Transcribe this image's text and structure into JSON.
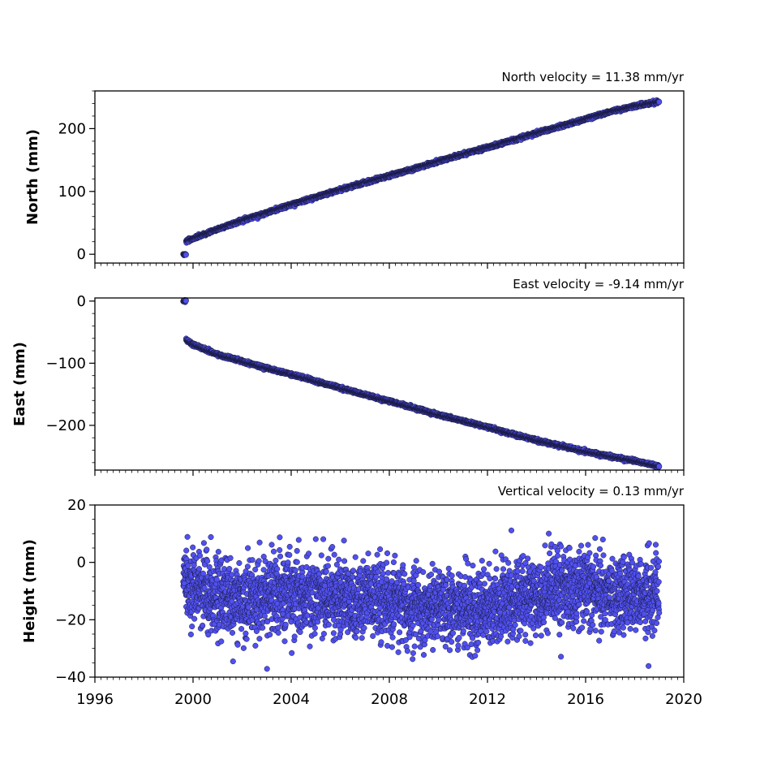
{
  "chart_data": [
    {
      "type": "scatter",
      "title": "North velocity = 11.38 mm/yr",
      "ylabel": "North (mm)",
      "xlim": [
        1996,
        2020
      ],
      "ylim": [
        -14,
        260
      ],
      "yticks": [
        0,
        100,
        200
      ],
      "yticklabels": [
        "0",
        "100",
        "200"
      ],
      "x_tick_labels_visible": false,
      "marker_color": "#5050f0",
      "series": [
        {
          "x": [
            1999.6,
            1999.7,
            2000.0,
            2000.5,
            2001.0,
            2002.0,
            2003.0,
            2004.0,
            2005.0,
            2006.0,
            2007.0,
            2008.0,
            2009.0,
            2010.0,
            2011.0,
            2012.0,
            2013.0,
            2014.0,
            2015.0,
            2016.0,
            2017.0,
            2018.0,
            2019.0
          ],
          "values": [
            0,
            20,
            25,
            32,
            40,
            54,
            66,
            79,
            91,
            103,
            114,
            125,
            136,
            148,
            159,
            170,
            181,
            193,
            204,
            215,
            227,
            236,
            243
          ]
        }
      ]
    },
    {
      "type": "scatter",
      "title": "East velocity = -9.14 mm/yr",
      "ylabel": "East (mm)",
      "xlim": [
        1996,
        2020
      ],
      "ylim": [
        -272,
        5
      ],
      "yticks": [
        0,
        -100,
        -200
      ],
      "yticklabels": [
        "0",
        "−100",
        "−200"
      ],
      "x_tick_labels_visible": false,
      "marker_color": "#5050f0",
      "series": [
        {
          "x": [
            1999.6,
            1999.7,
            2000.0,
            2000.5,
            2001.0,
            2002.0,
            2003.0,
            2004.0,
            2005.0,
            2006.0,
            2007.0,
            2008.0,
            2009.0,
            2010.0,
            2011.0,
            2012.0,
            2013.0,
            2014.0,
            2015.0,
            2016.0,
            2017.0,
            2018.0,
            2019.0
          ],
          "values": [
            0,
            -62,
            -70,
            -78,
            -86,
            -97,
            -108,
            -118,
            -129,
            -140,
            -151,
            -161,
            -172,
            -183,
            -193,
            -203,
            -214,
            -224,
            -233,
            -242,
            -250,
            -257,
            -266
          ]
        }
      ]
    },
    {
      "type": "scatter",
      "title": "Vertical velocity = 0.13 mm/yr",
      "ylabel": "Height (mm)",
      "xlabel": "",
      "xlim": [
        1996,
        2020
      ],
      "ylim": [
        -40,
        20
      ],
      "yticks": [
        20,
        0,
        -20,
        -40
      ],
      "yticklabels": [
        "20",
        "0",
        "−20",
        "−40"
      ],
      "xticks": [
        1996,
        2000,
        2004,
        2008,
        2012,
        2016,
        2020
      ],
      "xticklabels": [
        "1996",
        "2000",
        "2004",
        "2008",
        "2012",
        "2016",
        "2020"
      ],
      "marker_color": "#5050f0",
      "series": [
        {
          "x": [
            1999.6,
            2000.0,
            2001.0,
            2002.0,
            2003.0,
            2004.0,
            2005.0,
            2006.0,
            2007.0,
            2008.0,
            2009.0,
            2010.0,
            2011.0,
            2012.0,
            2013.0,
            2014.0,
            2015.0,
            2016.0,
            2017.0,
            2018.0,
            2019.0
          ],
          "values": [
            -6,
            -8,
            -12,
            -13,
            -12,
            -11,
            -12,
            -13,
            -12,
            -13,
            -16,
            -15,
            -17,
            -17,
            -14,
            -12,
            -10,
            -8,
            -11,
            -12,
            -10
          ]
        }
      ]
    }
  ]
}
